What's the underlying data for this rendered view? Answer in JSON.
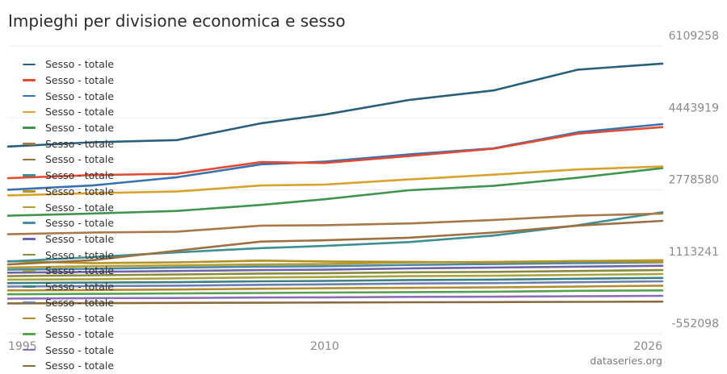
{
  "title": "Impieghi per divisione economica e sesso",
  "source": "dataseries.org",
  "colors": [
    "#2a5f7c",
    "#e34a33",
    "#3a72b0",
    "#d9a12e",
    "#3f9450",
    "#a8784a",
    "#9b7141",
    "#3d8f95",
    "#b39225",
    "#b59c2f",
    "#4a8aa6",
    "#6d63a8",
    "#8a8a3e",
    "#a9a33d",
    "#3c8086",
    "#6b7fb5",
    "#b38b2f",
    "#53a151",
    "#8a6db5",
    "#8b6b3d"
  ],
  "legend": [
    "Sesso - totale",
    "Sesso - totale",
    "Sesso - totale",
    "Sesso - totale",
    "Sesso - totale",
    "Sesso - totale",
    "Sesso - totale",
    "Sesso - totale",
    "Sesso - totale",
    "Sesso - totale",
    "Sesso - totale",
    "Sesso - totale",
    "Sesso - totale",
    "Sesso - totale",
    "Sesso - totale",
    "Sesso - totale",
    "Sesso - totale",
    "Sesso - totale",
    "Sesso - totale",
    "Sesso - totale"
  ],
  "chart_data": {
    "type": "line",
    "title": "Impieghi per divisione economica e sesso",
    "x_ticks": [
      "1995",
      "2010",
      "2026"
    ],
    "y_ticks": [
      6109258,
      4443919,
      2778580,
      1113241,
      -552098
    ],
    "ylim": [
      -552098,
      6109258
    ],
    "xlim": [
      1995,
      2026
    ],
    "grid": true,
    "legend_position": "top-left",
    "series": [
      {
        "name": "Sesso - totale",
        "x": [
          1995,
          1999,
          2003,
          2007,
          2010,
          2014,
          2018,
          2022,
          2026
        ],
        "y": [
          3780000,
          3880000,
          3930000,
          4320000,
          4520000,
          4860000,
          5080000,
          5560000,
          5700000
        ]
      },
      {
        "name": "Sesso - totale",
        "x": [
          1995,
          1999,
          2003,
          2007,
          2010,
          2014,
          2018,
          2022,
          2026
        ],
        "y": [
          3050000,
          3120000,
          3150000,
          3420000,
          3400000,
          3560000,
          3730000,
          4080000,
          4230000
        ]
      },
      {
        "name": "Sesso - totale",
        "x": [
          1995,
          1999,
          2003,
          2007,
          2010,
          2014,
          2018,
          2022,
          2026
        ],
        "y": [
          2780000,
          2880000,
          3070000,
          3370000,
          3430000,
          3600000,
          3740000,
          4110000,
          4300000
        ]
      },
      {
        "name": "Sesso - totale",
        "x": [
          1995,
          1999,
          2003,
          2007,
          2010,
          2014,
          2018,
          2022,
          2026
        ],
        "y": [
          2650000,
          2700000,
          2740000,
          2880000,
          2900000,
          3020000,
          3130000,
          3250000,
          3320000
        ]
      },
      {
        "name": "Sesso - totale",
        "x": [
          1995,
          1999,
          2003,
          2007,
          2010,
          2014,
          2018,
          2022,
          2026
        ],
        "y": [
          2180000,
          2230000,
          2290000,
          2430000,
          2560000,
          2770000,
          2870000,
          3060000,
          3280000
        ]
      },
      {
        "name": "Sesso - totale",
        "x": [
          1995,
          1999,
          2003,
          2007,
          2010,
          2014,
          2018,
          2022,
          2026
        ],
        "y": [
          1750000,
          1790000,
          1810000,
          1950000,
          1960000,
          2000000,
          2080000,
          2180000,
          2230000
        ]
      },
      {
        "name": "Sesso - totale",
        "x": [
          1995,
          1999,
          2003,
          2007,
          2010,
          2014,
          2018,
          2022,
          2026
        ],
        "y": [
          1050000,
          1150000,
          1370000,
          1580000,
          1610000,
          1670000,
          1790000,
          1950000,
          2060000
        ]
      },
      {
        "name": "Sesso - totale",
        "x": [
          1995,
          1999,
          2003,
          2007,
          2010,
          2014,
          2018,
          2022,
          2026
        ],
        "y": [
          1120000,
          1220000,
          1330000,
          1430000,
          1480000,
          1570000,
          1720000,
          1960000,
          2260000
        ]
      },
      {
        "name": "Sesso - totale",
        "x": [
          1995,
          1999,
          2003,
          2007,
          2010,
          2014,
          2018,
          2022,
          2026
        ],
        "y": [
          1130000,
          1080000,
          1100000,
          1140000,
          1120000,
          1110000,
          1100000,
          1130000,
          1110000
        ]
      },
      {
        "name": "Sesso - totale",
        "x": [
          1995,
          1999,
          2003,
          2007,
          2010,
          2014,
          2018,
          2022,
          2026
        ],
        "y": [
          980000,
          1010000,
          1030000,
          1050000,
          1060000,
          1100000,
          1110000,
          1130000,
          1150000
        ]
      },
      {
        "name": "Sesso - totale",
        "x": [
          1995,
          1999,
          2003,
          2007,
          2010,
          2014,
          2018,
          2022,
          2026
        ],
        "y": [
          930000,
          950000,
          980000,
          1000000,
          1010000,
          1040000,
          1060000,
          1080000,
          1100000
        ]
      },
      {
        "name": "Sesso - totale",
        "x": [
          1995,
          1999,
          2003,
          2007,
          2010,
          2014,
          2018,
          2022,
          2026
        ],
        "y": [
          860000,
          880000,
          900000,
          920000,
          930000,
          960000,
          980000,
          1000000,
          1020000
        ]
      },
      {
        "name": "Sesso - totale",
        "x": [
          1995,
          1999,
          2003,
          2007,
          2010,
          2014,
          2018,
          2022,
          2026
        ],
        "y": [
          780000,
          800000,
          820000,
          840000,
          850000,
          870000,
          880000,
          900000,
          920000
        ]
      },
      {
        "name": "Sesso - totale",
        "x": [
          1995,
          1999,
          2003,
          2007,
          2010,
          2014,
          2018,
          2022,
          2026
        ],
        "y": [
          700000,
          710000,
          730000,
          750000,
          760000,
          780000,
          790000,
          810000,
          830000
        ]
      },
      {
        "name": "Sesso - totale",
        "x": [
          1995,
          1999,
          2003,
          2007,
          2010,
          2014,
          2018,
          2022,
          2026
        ],
        "y": [
          620000,
          630000,
          640000,
          660000,
          670000,
          690000,
          700000,
          720000,
          740000
        ]
      },
      {
        "name": "Sesso - totale",
        "x": [
          1995,
          1999,
          2003,
          2007,
          2010,
          2014,
          2018,
          2022,
          2026
        ],
        "y": [
          540000,
          550000,
          560000,
          580000,
          590000,
          610000,
          620000,
          640000,
          660000
        ]
      },
      {
        "name": "Sesso - totale",
        "x": [
          1995,
          1999,
          2003,
          2007,
          2010,
          2014,
          2018,
          2022,
          2026
        ],
        "y": [
          450000,
          460000,
          470000,
          490000,
          500000,
          510000,
          520000,
          540000,
          560000
        ]
      },
      {
        "name": "Sesso - totale",
        "x": [
          1995,
          1999,
          2003,
          2007,
          2010,
          2014,
          2018,
          2022,
          2026
        ],
        "y": [
          360000,
          370000,
          380000,
          390000,
          400000,
          410000,
          420000,
          440000,
          450000
        ]
      },
      {
        "name": "Sesso - totale",
        "x": [
          1995,
          1999,
          2003,
          2007,
          2010,
          2014,
          2018,
          2022,
          2026
        ],
        "y": [
          260000,
          270000,
          275000,
          285000,
          290000,
          300000,
          305000,
          315000,
          325000
        ]
      },
      {
        "name": "Sesso - totale",
        "x": [
          1995,
          1999,
          2003,
          2007,
          2010,
          2014,
          2018,
          2022,
          2026
        ],
        "y": [
          150000,
          155000,
          160000,
          165000,
          170000,
          175000,
          180000,
          185000,
          190000
        ]
      }
    ]
  }
}
